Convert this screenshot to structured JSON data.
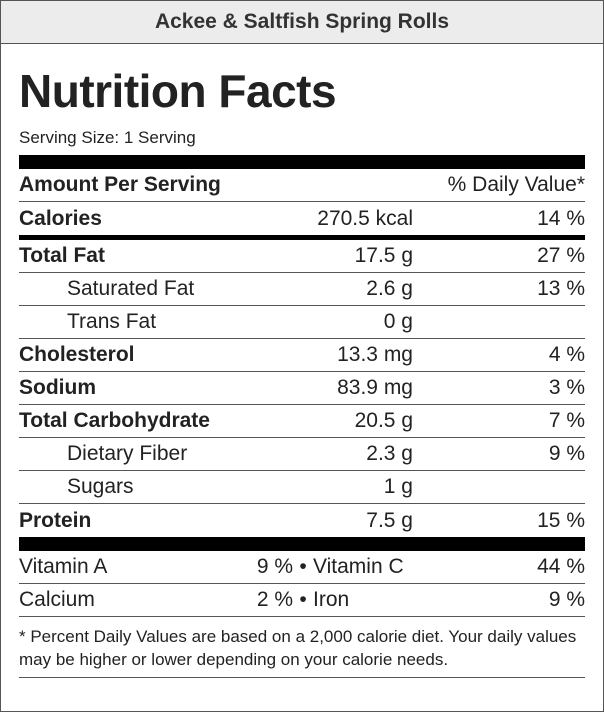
{
  "recipe_title": "Ackee & Saltfish Spring Rolls",
  "heading": "Nutrition Facts",
  "serving_size": "Serving Size: 1 Serving",
  "header": {
    "amount_per_serving": "Amount Per Serving",
    "daily_value": "% Daily Value*"
  },
  "calories": {
    "label": "Calories",
    "amount": "270.5 kcal",
    "dv": "14 %"
  },
  "nutrients": [
    {
      "label": "Total Fat",
      "amount": "17.5 g",
      "dv": "27 %"
    },
    {
      "label": "Saturated Fat",
      "amount": "2.6 g",
      "dv": "13 %"
    },
    {
      "label": "Trans Fat",
      "amount": "0 g",
      "dv": ""
    },
    {
      "label": "Cholesterol",
      "amount": "13.3 mg",
      "dv": "4 %"
    },
    {
      "label": "Sodium",
      "amount": "83.9 mg",
      "dv": "3 %"
    },
    {
      "label": "Total Carbohydrate",
      "amount": "20.5 g",
      "dv": "7 %"
    },
    {
      "label": "Dietary Fiber",
      "amount": "2.3 g",
      "dv": "9 %"
    },
    {
      "label": "Sugars",
      "amount": "1 g",
      "dv": ""
    },
    {
      "label": "Protein",
      "amount": "7.5 g",
      "dv": "15 %"
    }
  ],
  "vitamins": [
    {
      "left_label": "Vitamin A",
      "left_value": "9 %",
      "separator": "•",
      "right_label": "Vitamin C",
      "right_value": "44 %"
    },
    {
      "left_label": "Calcium",
      "left_value": "2 %",
      "separator": "•",
      "right_label": "Iron",
      "right_value": "9 %"
    }
  ],
  "footnote": "* Percent Daily Values are based on a 2,000 calorie diet. Your daily values may be higher or lower depending on your calorie needs."
}
